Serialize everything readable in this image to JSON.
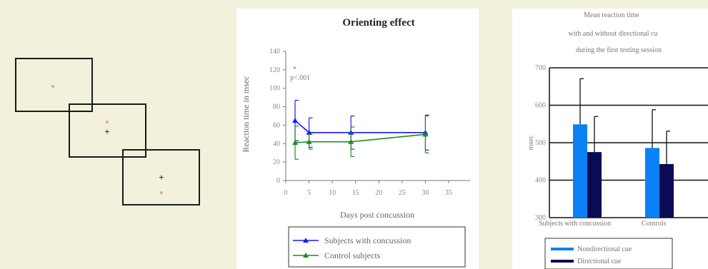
{
  "diagram": {
    "colors": {
      "box": "#1a1a1a",
      "cue": "#e6a2a2",
      "fixation": "#1a1a1a"
    }
  },
  "chart_data": [
    {
      "type": "line",
      "title": "Orienting effect",
      "xlabel": "Days post concussion",
      "ylabel": "Reaction time in msec",
      "xlim": [
        0,
        35
      ],
      "ylim": [
        0,
        140
      ],
      "x_ticks": [
        0,
        5,
        10,
        15,
        20,
        25,
        30,
        35
      ],
      "y_ticks": [
        0,
        20,
        40,
        60,
        80,
        100,
        120,
        140
      ],
      "grid": false,
      "legend_position": "bottom",
      "annotation": {
        "line1": "*",
        "line2": "p<.001"
      },
      "series": [
        {
          "name": "Subjects with concussion",
          "color": "#1a1aff",
          "x": [
            2,
            5,
            14,
            30
          ],
          "y": [
            65,
            52,
            52,
            52
          ],
          "err": [
            22,
            16,
            18,
            19
          ]
        },
        {
          "name": "Control subjects",
          "color": "#1e8c1e",
          "x": [
            2,
            5,
            14,
            30
          ],
          "y": [
            41,
            42,
            42,
            50
          ],
          "err": [
            18,
            8,
            16,
            20
          ]
        }
      ]
    },
    {
      "type": "bar",
      "title_lines": [
        "Mean reaction time",
        "with and without directional cu",
        "during the first testing session"
      ],
      "xlabel": "",
      "ylabel": "msec",
      "ylim": [
        300,
        700
      ],
      "y_ticks": [
        300,
        400,
        500,
        600,
        700
      ],
      "grid": true,
      "legend_position": "bottom",
      "categories": [
        "Subjects with concussion",
        "Controls"
      ],
      "series": [
        {
          "name": "Nondirectional cue",
          "color": "#0a82f5",
          "values": [
            549,
            486
          ],
          "err": [
            122,
            102
          ]
        },
        {
          "name": "Directional cue",
          "color": "#0a0a55",
          "values": [
            475,
            443
          ],
          "err": [
            95,
            88
          ]
        }
      ]
    }
  ]
}
